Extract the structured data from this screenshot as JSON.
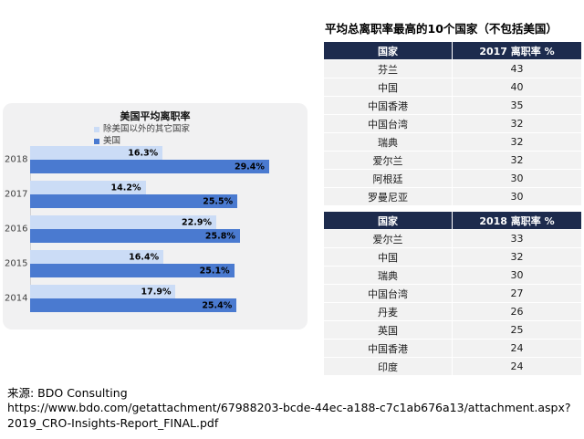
{
  "chart": {
    "title": "美国平均离职率",
    "xmax": 33,
    "categories": [
      "2018",
      "2017",
      "2016",
      "2015",
      "2014"
    ],
    "series": [
      {
        "name": "除美国以外的其它国家",
        "color": "#cbdcf6",
        "values": [
          16.3,
          14.2,
          22.9,
          16.4,
          17.9
        ]
      },
      {
        "name": "美国",
        "color": "#4a7ad0",
        "values": [
          29.4,
          25.5,
          25.8,
          25.1,
          25.4
        ]
      }
    ],
    "panel_bg": "#f1f1f2",
    "value_suffix": "%"
  },
  "chart_data": [
    {
      "type": "bar",
      "orientation": "horizontal",
      "title": "美国平均离职率",
      "categories": [
        "2018",
        "2017",
        "2016",
        "2015",
        "2014"
      ],
      "series": [
        {
          "name": "除美国以外的其它国家",
          "values": [
            16.3,
            14.2,
            22.9,
            16.4,
            17.9
          ]
        },
        {
          "name": "美国",
          "values": [
            29.4,
            25.5,
            25.8,
            25.1,
            25.4
          ]
        }
      ],
      "value_suffix": "%",
      "xlim": [
        0,
        33
      ],
      "grid": false,
      "data_labels": true,
      "legend_position": "top-left",
      "colors": {
        "除美国以外的其它国家": "#cbdcf6",
        "美国": "#4a7ad0"
      }
    },
    {
      "type": "table",
      "title": "平均总离职率最高的10个国家（不包括美国）",
      "columns": [
        "国家",
        "2017 离职率 %"
      ],
      "rows": [
        [
          "芬兰",
          43
        ],
        [
          "中国",
          40
        ],
        [
          "中国香港",
          35
        ],
        [
          "中国台湾",
          32
        ],
        [
          "瑞典",
          32
        ],
        [
          "爱尔兰",
          32
        ],
        [
          "阿根廷",
          30
        ],
        [
          "罗曼尼亚",
          30
        ]
      ]
    },
    {
      "type": "table",
      "columns": [
        "国家",
        "2018 离职率 %"
      ],
      "rows": [
        [
          "爱尔兰",
          33
        ],
        [
          "中国",
          32
        ],
        [
          "瑞典",
          30
        ],
        [
          "中国台湾",
          27
        ],
        [
          "丹麦",
          26
        ],
        [
          "英国",
          25
        ],
        [
          "中国香港",
          24
        ],
        [
          "印度",
          24
        ]
      ]
    }
  ],
  "table": {
    "title": "平均总离职率最高的10个国家（不包括美国）",
    "header_bg": "#1d2b4d",
    "row_bg": "#f2f2f2",
    "sections": [
      {
        "header": [
          "国家",
          "2017 离职率 %"
        ],
        "rows": [
          [
            "芬兰",
            "43"
          ],
          [
            "中国",
            "40"
          ],
          [
            "中国香港",
            "35"
          ],
          [
            "中国台湾",
            "32"
          ],
          [
            "瑞典",
            "32"
          ],
          [
            "爱尔兰",
            "32"
          ],
          [
            "阿根廷",
            "30"
          ],
          [
            "罗曼尼亚",
            "30"
          ]
        ]
      },
      {
        "header": [
          "国家",
          "2018 离职率 %"
        ],
        "rows": [
          [
            "爱尔兰",
            "33"
          ],
          [
            "中国",
            "32"
          ],
          [
            "瑞典",
            "30"
          ],
          [
            "中国台湾",
            "27"
          ],
          [
            "丹麦",
            "26"
          ],
          [
            "英国",
            "25"
          ],
          [
            "中国香港",
            "24"
          ],
          [
            "印度",
            "24"
          ]
        ]
      }
    ]
  },
  "footer": {
    "source": "来源: BDO Consulting",
    "url": "https://www.bdo.com/getattachment/67988203-bcde-44ec-a188-c7c1ab676a13/attachment.aspx?2019_CRO-Insights-Report_FINAL.pdf"
  }
}
